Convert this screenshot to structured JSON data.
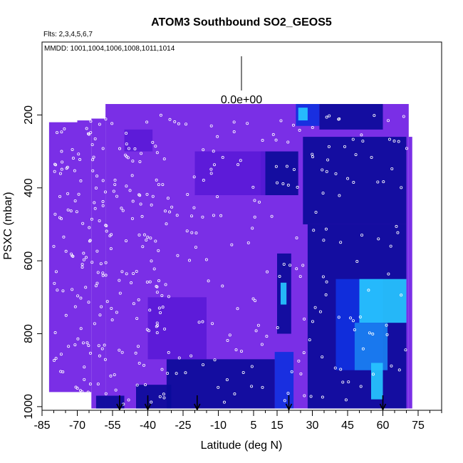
{
  "chart_data": {
    "type": "heatmap",
    "title": "ATOM3 Southbound SO2_GEOS5",
    "flights_note": "Flts: 2,3,4,5,6,7",
    "dates_note": "MMDD: 1001,1004,1006,1008,1011,1014",
    "xlabel": "Latitude (deg N)",
    "ylabel": "PSXC (mbar)",
    "xlim": [
      -85,
      85
    ],
    "ylim": [
      1010,
      0
    ],
    "x_ticks": [
      -85,
      -70,
      -55,
      -40,
      -25,
      -10,
      5,
      15,
      30,
      45,
      60,
      75
    ],
    "x_tick_labels": [
      "-85",
      "-70",
      "-55",
      "-40",
      "-25",
      "-10",
      "5",
      "15",
      "30",
      "45",
      "60",
      "75"
    ],
    "x_minor_ticks": [
      -80,
      -75,
      -65,
      -60,
      -50,
      -45,
      -35,
      -30,
      -20,
      -15,
      -5,
      0,
      10,
      20,
      25,
      35,
      40,
      50,
      55,
      65,
      70,
      80,
      85
    ],
    "y_ticks": [
      200,
      400,
      600,
      800,
      1000
    ],
    "y_tick_labels": [
      "200",
      "400",
      "600",
      "800",
      "1000"
    ],
    "scale_label": "0.0e+00",
    "arrow_latitudes": [
      -52,
      -40,
      -19,
      20,
      60
    ],
    "colors": {
      "base": "#7a2fe6",
      "purple_dark": "#5a1ad8",
      "blue_dark": "#0b0b9a",
      "blue_mid": "#1030e0",
      "blue_light": "#1a7ff0",
      "cyan": "#27c6ff",
      "marker": "#ffffff",
      "axis": "#000000"
    },
    "coverage": [
      {
        "lat_min": -82,
        "lat_max": -70,
        "p_min": 220,
        "p_max": 960
      },
      {
        "lat_min": -70,
        "lat_max": -64,
        "p_min": 215,
        "p_max": 960
      },
      {
        "lat_min": -64,
        "lat_max": -58,
        "p_min": 210,
        "p_max": 1005
      },
      {
        "lat_min": -58,
        "lat_max": 71,
        "p_min": 170,
        "p_max": 1005
      },
      {
        "lat_min": 71,
        "lat_max": 72.5,
        "p_min": 260,
        "p_max": 1005
      }
    ],
    "enhanced_regions": [
      {
        "lat_min": 23,
        "lat_max": 33,
        "p_min": 170,
        "p_max": 230,
        "color": "blue_mid"
      },
      {
        "lat_min": 24,
        "lat_max": 28,
        "p_min": 180,
        "p_max": 215,
        "color": "cyan"
      },
      {
        "lat_min": 33,
        "lat_max": 60,
        "p_min": 170,
        "p_max": 240,
        "color": "blue_dark"
      },
      {
        "lat_min": 8,
        "lat_max": 24,
        "p_min": 300,
        "p_max": 420,
        "color": "blue_dark"
      },
      {
        "lat_min": 26,
        "lat_max": 70,
        "p_min": 260,
        "p_max": 500,
        "color": "blue_dark"
      },
      {
        "lat_min": 28,
        "lat_max": 70,
        "p_min": 500,
        "p_max": 1005,
        "color": "blue_dark"
      },
      {
        "lat_min": 40,
        "lat_max": 60,
        "p_min": 650,
        "p_max": 900,
        "color": "blue_mid"
      },
      {
        "lat_min": 50,
        "lat_max": 70,
        "p_min": 650,
        "p_max": 770,
        "color": "cyan"
      },
      {
        "lat_min": 48,
        "lat_max": 62,
        "p_min": 770,
        "p_max": 900,
        "color": "blue_light"
      },
      {
        "lat_min": 55,
        "lat_max": 60,
        "p_min": 880,
        "p_max": 980,
        "color": "cyan"
      },
      {
        "lat_min": 15,
        "lat_max": 21,
        "p_min": 580,
        "p_max": 800,
        "color": "blue_dark"
      },
      {
        "lat_min": 16.5,
        "lat_max": 19,
        "p_min": 660,
        "p_max": 720,
        "color": "cyan"
      },
      {
        "lat_min": 14,
        "lat_max": 22,
        "p_min": 850,
        "p_max": 1005,
        "color": "blue_mid"
      },
      {
        "lat_min": -32,
        "lat_max": 14,
        "p_min": 870,
        "p_max": 1005,
        "color": "blue_dark"
      },
      {
        "lat_min": -45,
        "lat_max": -30,
        "p_min": 940,
        "p_max": 1005,
        "color": "blue_dark"
      },
      {
        "lat_min": -62,
        "lat_max": -50,
        "p_min": 970,
        "p_max": 1005,
        "color": "blue_dark"
      },
      {
        "lat_min": -50,
        "lat_max": -38,
        "p_min": 240,
        "p_max": 300,
        "color": "purple_dark"
      },
      {
        "lat_min": -20,
        "lat_max": 10,
        "p_min": 300,
        "p_max": 420,
        "color": "purple_dark"
      },
      {
        "lat_min": -40,
        "lat_max": -15,
        "p_min": 700,
        "p_max": 870,
        "color": "purple_dark"
      }
    ]
  }
}
